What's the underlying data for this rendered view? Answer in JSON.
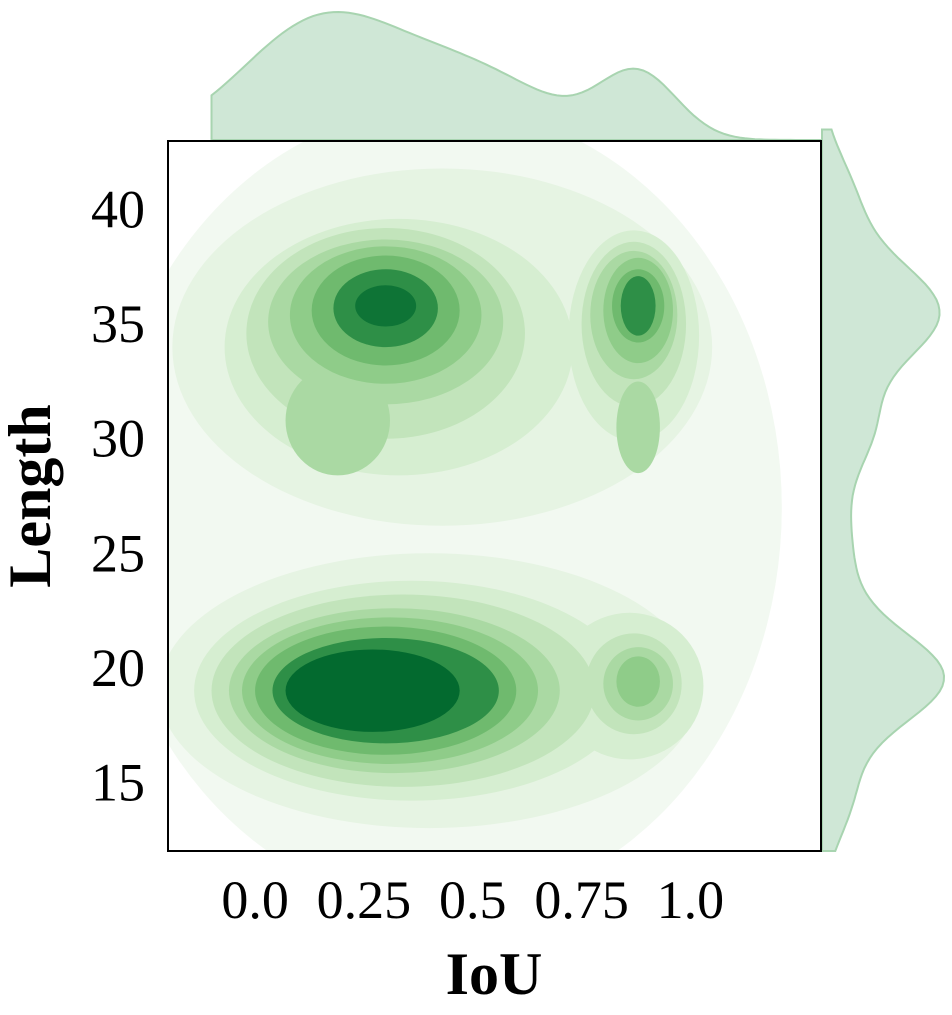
{
  "chart_data": {
    "type": "kde_joint",
    "xlabel": "IoU",
    "ylabel": "Length",
    "x_ticks": [
      "0.0",
      "0.25",
      "0.5",
      "0.75",
      "1.0"
    ],
    "y_ticks": [
      "15",
      "20",
      "25",
      "30",
      "35",
      "40"
    ],
    "xlim": [
      -0.2,
      1.3
    ],
    "ylim": [
      12,
      43
    ],
    "grid": false,
    "legend": "none",
    "density_peaks": [
      {
        "x": 0.28,
        "y": 19.0,
        "level": "highest"
      },
      {
        "x": 0.3,
        "y": 35.7,
        "level": "high"
      },
      {
        "x": 0.88,
        "y": 35.8,
        "level": "medium"
      },
      {
        "x": 0.88,
        "y": 19.4,
        "level": "low"
      },
      {
        "x": 0.2,
        "y": 30.5,
        "level": "low"
      }
    ],
    "marginal_x_peaks": [
      {
        "x": 0.15,
        "density": "high"
      },
      {
        "x": 0.88,
        "density": "medium"
      }
    ],
    "marginal_y_peaks": [
      {
        "y": 35.5,
        "density": "high"
      },
      {
        "y": 19.5,
        "density": "high"
      },
      {
        "y": 27.5,
        "density": "low"
      }
    ],
    "colors": [
      "#f2f9f1",
      "#e6f4e3",
      "#d6eed1",
      "#c2e4bb",
      "#aad9a3",
      "#8fcc89",
      "#6fba6e",
      "#52a95b",
      "#2e8f47",
      "#0e7436",
      "#036a2f"
    ],
    "marginal_fill": "#cfe7d6",
    "marginal_line": "#a8d4b0"
  }
}
